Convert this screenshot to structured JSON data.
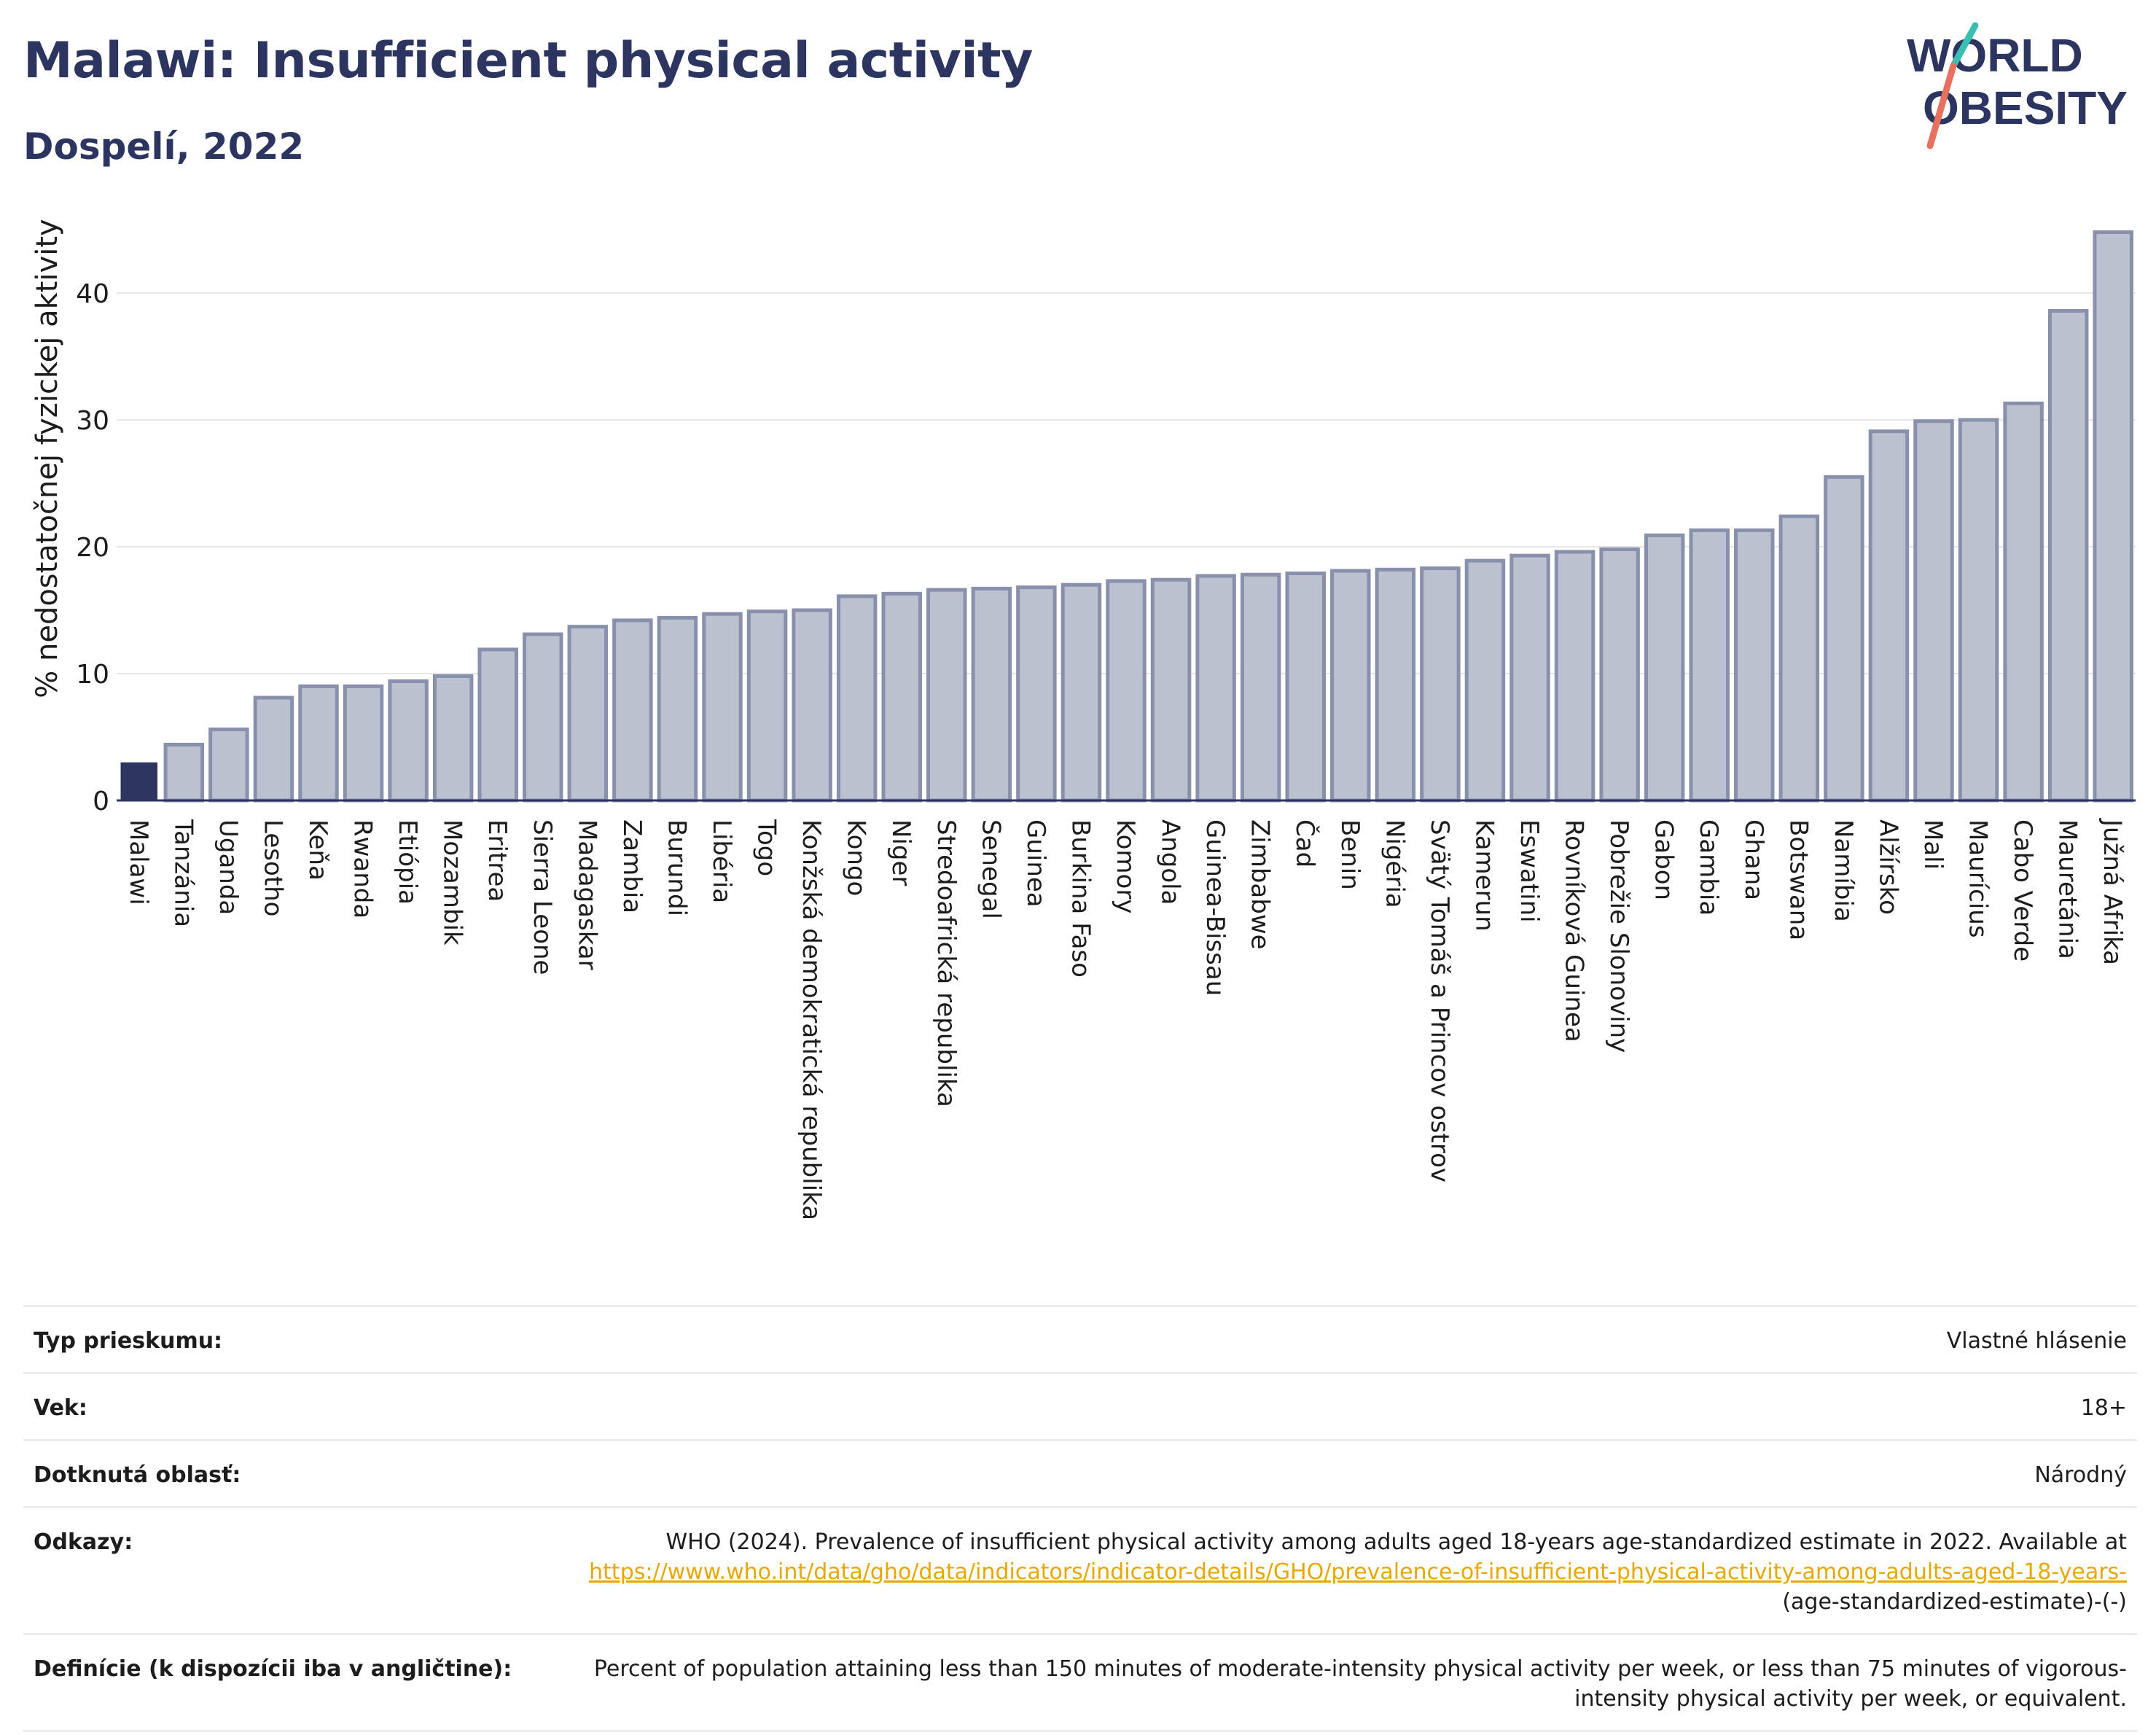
{
  "header": {
    "title": "Malawi: Insufficient physical activity",
    "subtitle": "Dospelí, 2022",
    "logo_line1": "WORLD",
    "logo_line2": "OBESITY"
  },
  "colors": {
    "title": "#2c3560",
    "highlight_bar": "#2c3560",
    "bar_fill": "#bcc1d0",
    "bar_stroke": "#8990ab",
    "link": "#e6a800",
    "logo_teal": "#3bbfb3",
    "logo_coral": "#e8705f"
  },
  "chart_data": {
    "type": "bar",
    "title": "Malawi: Insufficient physical activity",
    "subtitle": "Dospelí, 2022",
    "xlabel": "",
    "ylabel": "% nedostatočnej fyzickej aktivity",
    "ylim": [
      0,
      45
    ],
    "yticks": [
      0,
      10,
      20,
      30,
      40
    ],
    "grid": true,
    "highlight": "Malawi",
    "categories": [
      "Malawi",
      "Tanzánia",
      "Uganda",
      "Lesotho",
      "Keňa",
      "Rwanda",
      "Etiópia",
      "Mozambik",
      "Eritrea",
      "Sierra Leone",
      "Madagaskar",
      "Zambia",
      "Burundi",
      "Libéria",
      "Togo",
      "Konžská demokratická republika",
      "Kongo",
      "Niger",
      "Stredoafrická republika",
      "Senegal",
      "Guinea",
      "Burkina Faso",
      "Komory",
      "Angola",
      "Guinea-Bissau",
      "Zimbabwe",
      "Čad",
      "Benin",
      "Nigéria",
      "Svätý Tomáš a Princov ostrov",
      "Kamerun",
      "Eswatini",
      "Rovníková Guinea",
      "Pobrežie Slonoviny",
      "Gabon",
      "Gambia",
      "Ghana",
      "Botswana",
      "Namíbia",
      "Alžírsko",
      "Mali",
      "Maurícius",
      "Cabo Verde",
      "Mauretánia",
      "Južná Afrika"
    ],
    "values": [
      3.0,
      4.4,
      5.6,
      8.1,
      9.0,
      9.0,
      9.4,
      9.8,
      11.9,
      13.1,
      13.7,
      14.2,
      14.4,
      14.7,
      14.9,
      15.0,
      16.1,
      16.3,
      16.6,
      16.7,
      16.8,
      17.0,
      17.3,
      17.4,
      17.7,
      17.8,
      17.9,
      18.1,
      18.2,
      18.3,
      18.9,
      19.3,
      19.6,
      19.8,
      20.9,
      21.3,
      21.3,
      22.4,
      25.5,
      29.1,
      29.9,
      30.0,
      31.3,
      38.6,
      44.8
    ]
  },
  "info": {
    "survey_type_label": "Typ prieskumu:",
    "survey_type_value": "Vlastné hlásenie",
    "age_label": "Vek:",
    "age_value": "18+",
    "area_label": "Dotknutá oblasť:",
    "area_value": "Národný",
    "refs_label": "Odkazy:",
    "refs_text": "WHO (2024). Prevalence of insufficient physical activity among adults aged 18-years age-standardized estimate in 2022. Available at",
    "refs_link": "https://www.who.int/data/gho/data/indicators/indicator-details/GHO/prevalence-of-insufficient-physical-activity-among-adults-aged-18-years-",
    "refs_tail": "(age-standardized-estimate)-(-)",
    "defs_label": "Definície (k dispozícii iba v angličtine):",
    "defs_value": "Percent of population attaining less than 150 minutes of moderate-intensity physical activity per week, or less than 75 minutes of vigorous-intensity physical activity per week, or equivalent."
  }
}
